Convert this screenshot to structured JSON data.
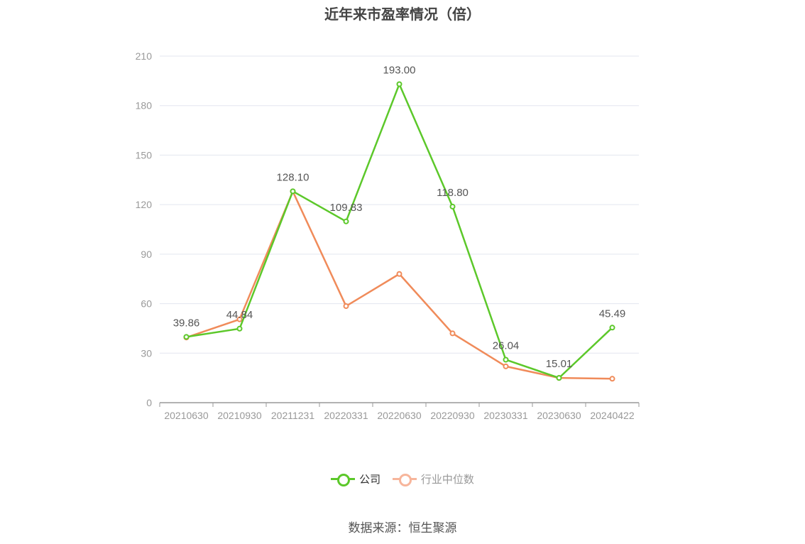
{
  "title": "近年来市盈率情况（倍）",
  "source": "数据来源：恒生聚源",
  "colors": {
    "company": "#5cc82a",
    "industry": "#f08b5a",
    "grid": "#e3e6ef",
    "axis": "#999999",
    "text": "#999999",
    "label": "#555555"
  },
  "legend": [
    {
      "name": "公司",
      "color": "#5cc82a",
      "text_color": "#333333"
    },
    {
      "name": "行业中位数",
      "color": "#f7b59b",
      "text_color": "#999999"
    }
  ],
  "chart_data": {
    "type": "line",
    "categories": [
      "20210630",
      "20210930",
      "20211231",
      "20220331",
      "20220630",
      "20220930",
      "20230331",
      "20230630",
      "20240422"
    ],
    "ylim": [
      0,
      210
    ],
    "yticks": [
      0,
      30,
      60,
      90,
      120,
      150,
      180,
      210
    ],
    "grid": true,
    "legend_position": "bottom",
    "series": [
      {
        "name": "公司",
        "values": [
          39.86,
          44.84,
          128.1,
          109.83,
          193.0,
          118.8,
          26.04,
          15.01,
          45.49
        ],
        "labels": [
          "39.86",
          "44.84",
          "128.10",
          "109.83",
          "193.00",
          "118.80",
          "26.04",
          "15.01",
          "45.49"
        ]
      },
      {
        "name": "行业中位数",
        "values": [
          39.5,
          50.5,
          128.0,
          58.5,
          78.0,
          42.0,
          22.0,
          15.0,
          14.5
        ]
      }
    ]
  }
}
